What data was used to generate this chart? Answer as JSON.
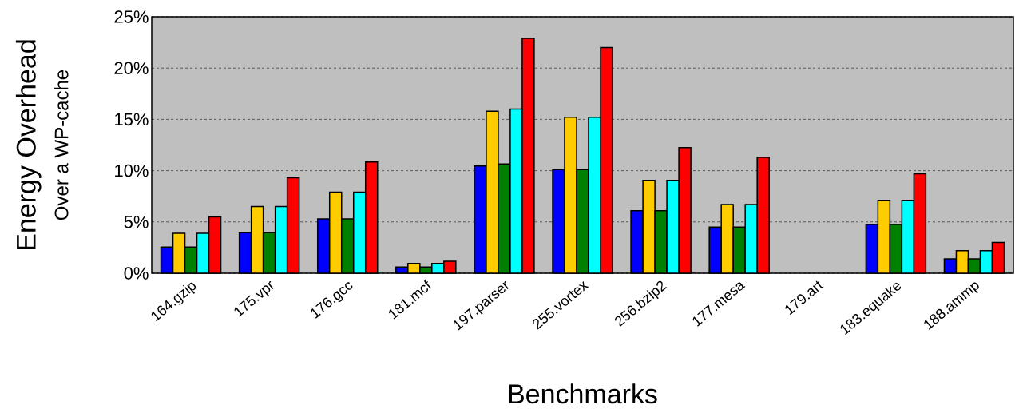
{
  "chart_data": {
    "type": "bar",
    "xlabel": "Benchmarks",
    "ylabel": "Energy Overhead",
    "annotations": [
      "Over a WP-cache"
    ],
    "categories": [
      "164.gzip",
      "175.vpr",
      "176.gcc",
      "181.mcf",
      "197.parser",
      "255.vortex",
      "256.bzip2",
      "177.mesa",
      "179.art",
      "183.equake",
      "188.ammp"
    ],
    "series": [
      {
        "color": "#0000ff",
        "values": [
          2.55,
          3.95,
          5.3,
          0.6,
          10.45,
          10.1,
          6.1,
          4.5,
          null,
          4.75,
          1.4
        ]
      },
      {
        "color": "#ffcc00",
        "values": [
          3.9,
          6.5,
          7.9,
          0.96,
          15.8,
          15.2,
          9.05,
          6.7,
          null,
          7.1,
          2.2
        ]
      },
      {
        "color": "#008000",
        "values": [
          2.55,
          3.95,
          5.3,
          0.6,
          10.65,
          10.1,
          6.1,
          4.5,
          null,
          4.75,
          1.4
        ]
      },
      {
        "color": "#00ffff",
        "values": [
          3.9,
          6.5,
          7.9,
          0.96,
          16.0,
          15.2,
          9.05,
          6.7,
          null,
          7.1,
          2.2
        ]
      },
      {
        "color": "#ff0000",
        "values": [
          5.5,
          9.3,
          10.85,
          1.17,
          22.9,
          22.0,
          12.25,
          11.3,
          null,
          9.7,
          3.0
        ]
      }
    ],
    "ylim": [
      0,
      25
    ],
    "yticks": [
      {
        "value": 0,
        "label": "0%"
      },
      {
        "value": 5,
        "label": "5%"
      },
      {
        "value": 10,
        "label": "10%"
      },
      {
        "value": 15,
        "label": "15%"
      },
      {
        "value": 20,
        "label": "20%"
      },
      {
        "value": 25,
        "label": "25%"
      }
    ],
    "grid": "y"
  }
}
